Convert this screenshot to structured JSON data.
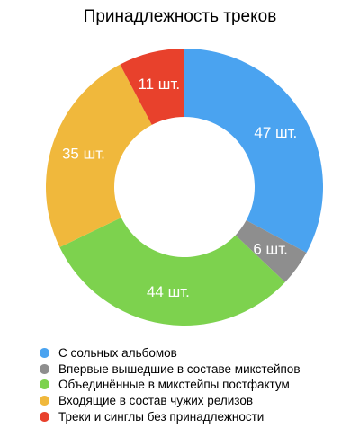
{
  "chart_data": {
    "type": "pie",
    "title": "Принадлежность треков",
    "donut": true,
    "unit": "шт.",
    "categories": [
      "С сольных альбомов",
      "Впервые вышедшие в составе микстейпов",
      "Объединённые в микстейпы постфактум",
      "Входящие в состав чужих релизов",
      "Треки и синглы без принадлежности"
    ],
    "values": [
      47,
      6,
      44,
      35,
      11
    ],
    "data_labels": [
      "47 шт.",
      "6 шт.",
      "44 шт.",
      "35 шт.",
      "11 шт."
    ],
    "colors": [
      "#4aa3f0",
      "#8e8e8e",
      "#7dd24e",
      "#f0b83c",
      "#e8412c"
    ],
    "legend_position": "bottom-left"
  }
}
